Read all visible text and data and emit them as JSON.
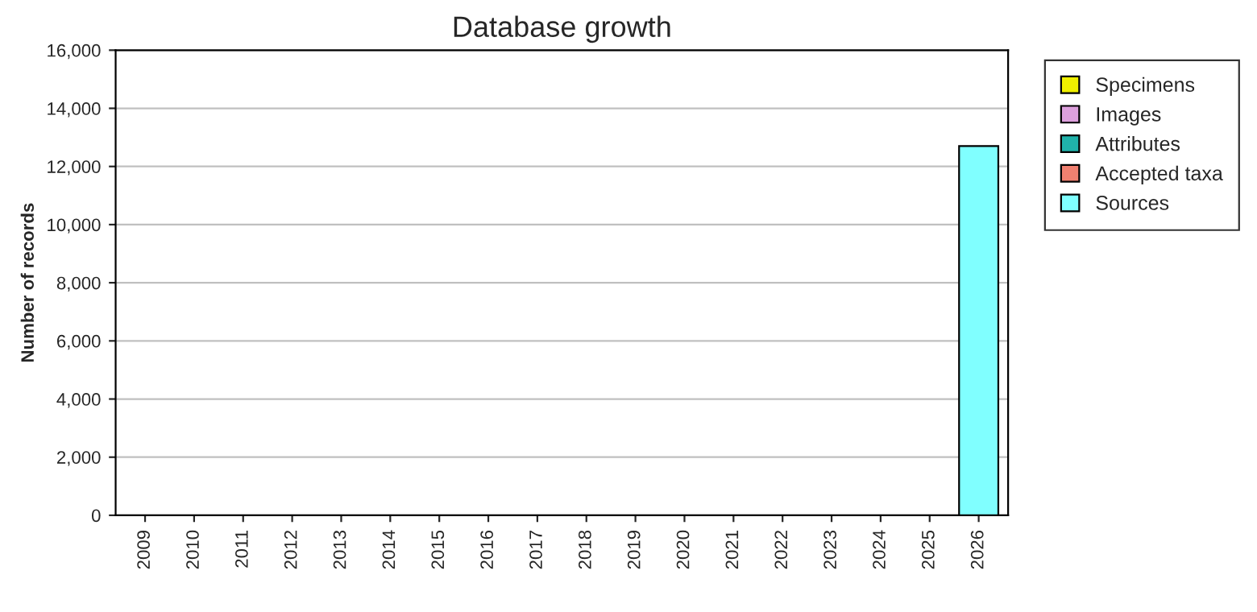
{
  "chart_data": {
    "type": "bar",
    "title": "Database growth",
    "ylabel": "Number of records",
    "categories": [
      "2009",
      "2010",
      "2011",
      "2012",
      "2013",
      "2014",
      "2015",
      "2016",
      "2017",
      "2018",
      "2019",
      "2020",
      "2021",
      "2022",
      "2023",
      "2024",
      "2025",
      "2026"
    ],
    "series": [
      {
        "name": "Specimens",
        "color": "#f0f000",
        "values": [
          null,
          null,
          null,
          null,
          null,
          null,
          null,
          null,
          null,
          null,
          null,
          null,
          null,
          null,
          null,
          null,
          null,
          null
        ]
      },
      {
        "name": "Images",
        "color": "#dda0dd",
        "values": [
          null,
          null,
          null,
          null,
          null,
          null,
          null,
          null,
          null,
          null,
          null,
          null,
          null,
          null,
          null,
          null,
          null,
          null
        ]
      },
      {
        "name": "Attributes",
        "color": "#20b2aa",
        "values": [
          null,
          null,
          null,
          null,
          null,
          null,
          null,
          null,
          null,
          null,
          null,
          null,
          null,
          null,
          null,
          null,
          null,
          null
        ]
      },
      {
        "name": "Accepted taxa",
        "color": "#f08070",
        "values": [
          null,
          null,
          null,
          null,
          null,
          null,
          null,
          null,
          null,
          null,
          null,
          null,
          null,
          null,
          null,
          null,
          null,
          null
        ]
      },
      {
        "name": "Sources",
        "color": "#80ffff",
        "values": [
          null,
          null,
          null,
          null,
          null,
          null,
          null,
          null,
          null,
          null,
          null,
          null,
          null,
          null,
          null,
          null,
          null,
          12700
        ]
      }
    ],
    "ylim": [
      0,
      16000
    ],
    "yticks": [
      {
        "value": 0,
        "label": "0"
      },
      {
        "value": 2000,
        "label": "2,000"
      },
      {
        "value": 4000,
        "label": "4,000"
      },
      {
        "value": 6000,
        "label": "6,000"
      },
      {
        "value": 8000,
        "label": "8,000"
      },
      {
        "value": 10000,
        "label": "10,000"
      },
      {
        "value": 12000,
        "label": "12,000"
      },
      {
        "value": 14000,
        "label": "14,000"
      },
      {
        "value": 16000,
        "label": "16,000"
      }
    ],
    "grid": "y",
    "legend": "top right"
  }
}
